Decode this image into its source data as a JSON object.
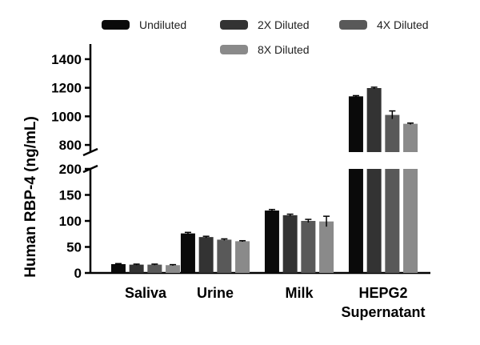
{
  "chart_data": {
    "type": "bar",
    "title": "",
    "xlabel": "",
    "ylabel": "Human RBP-4 (ng/mL)",
    "categories": [
      "Saliva",
      "Urine",
      "Milk",
      "HEPG2 Supernatant"
    ],
    "category_lines": [
      [
        "Saliva"
      ],
      [
        "Urine"
      ],
      [
        "Milk"
      ],
      [
        "HEPG2",
        "Supernatant"
      ]
    ],
    "y_axis": {
      "broken": true,
      "lower_segment": {
        "range": [
          0,
          200
        ],
        "ticks": [
          0,
          50,
          100,
          150,
          200
        ]
      },
      "upper_segment": {
        "range": [
          750,
          1450
        ],
        "ticks": [
          800,
          1000,
          1200,
          1400
        ]
      }
    },
    "series": [
      {
        "name": "Undiluted",
        "color": "#0a0a0a",
        "values": [
          17,
          76,
          120,
          1140
        ],
        "errors": [
          1,
          2,
          2,
          5
        ]
      },
      {
        "name": "2X Diluted",
        "color": "#333333",
        "values": [
          16,
          69,
          111,
          1198
        ],
        "errors": [
          1,
          1.5,
          2,
          6
        ]
      },
      {
        "name": "4X Diluted",
        "color": "#595959",
        "values": [
          16,
          64,
          100,
          1010
        ],
        "errors": [
          1,
          1.5,
          3,
          28
        ]
      },
      {
        "name": "8X Diluted",
        "color": "#8a8a8a",
        "values": [
          15,
          61,
          99,
          948
        ],
        "errors": [
          1,
          1,
          10,
          5
        ]
      }
    ],
    "legend_placement": "top",
    "grid": false
  }
}
